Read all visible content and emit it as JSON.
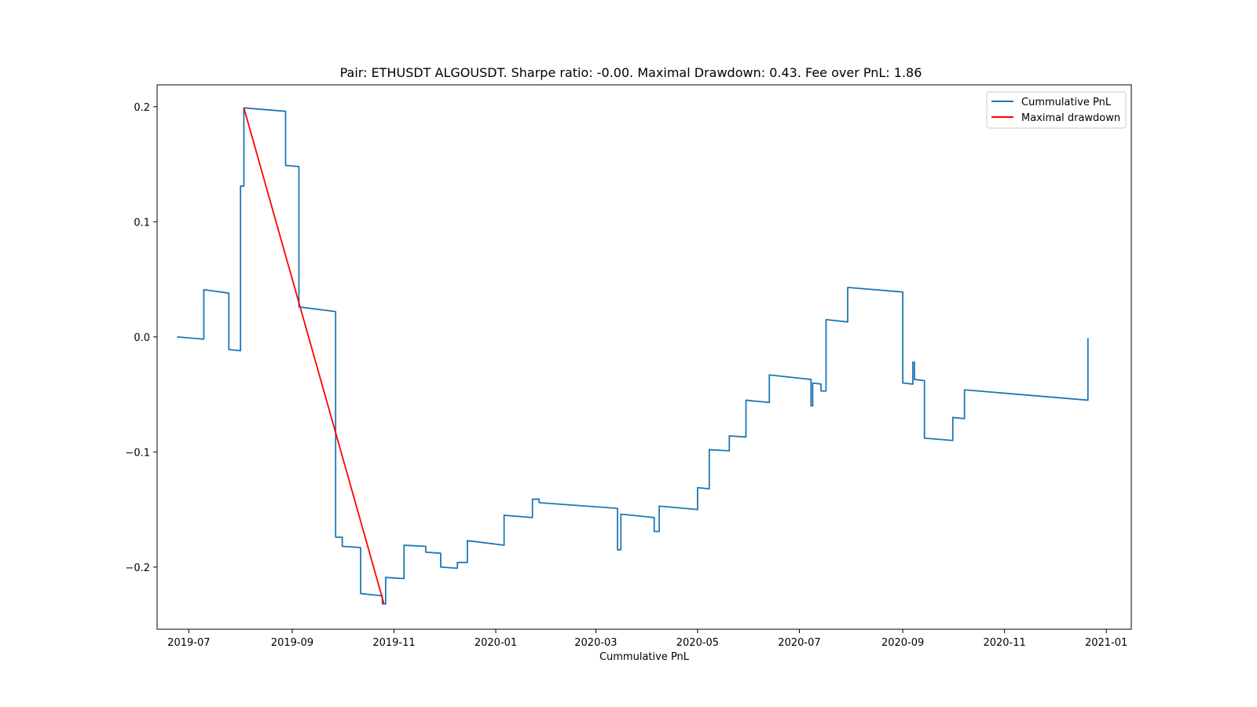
{
  "chart_data": {
    "type": "line",
    "title": "Pair: ETHUSDT ALGOUSDT. Sharpe ratio: -0.00. Maximal Drawdown: 0.43. Fee over PnL: 1.86",
    "xlabel": "Cummulative PnL",
    "ylabel": "",
    "xlim": [
      "2019-06-12",
      "2021-01-16"
    ],
    "ylim": [
      -0.254,
      0.219
    ],
    "x_ticks": [
      "2019-07",
      "2019-09",
      "2019-11",
      "2020-01",
      "2020-03",
      "2020-05",
      "2020-07",
      "2020-09",
      "2020-11",
      "2021-01"
    ],
    "y_ticks": [
      "0.2",
      "0.1",
      "0.0",
      "−0.1",
      "−0.2"
    ],
    "y_tick_values": [
      0.2,
      0.1,
      0.0,
      -0.1,
      -0.2
    ],
    "legend_position": "top-right",
    "grid": false,
    "series": [
      {
        "name": "Cummulative PnL",
        "color": "#1f77b4",
        "points": [
          [
            "2019-06-24",
            0.0
          ],
          [
            "2019-07-10",
            -0.002
          ],
          [
            "2019-07-10",
            0.041
          ],
          [
            "2019-07-25",
            0.038
          ],
          [
            "2019-07-25",
            -0.011
          ],
          [
            "2019-08-01",
            -0.012
          ],
          [
            "2019-08-01",
            0.131
          ],
          [
            "2019-08-03",
            0.131
          ],
          [
            "2019-08-03",
            0.199
          ],
          [
            "2019-08-28",
            0.196
          ],
          [
            "2019-08-28",
            0.149
          ],
          [
            "2019-09-05",
            0.148
          ],
          [
            "2019-09-05",
            0.026
          ],
          [
            "2019-09-27",
            0.022
          ],
          [
            "2019-09-27",
            -0.174
          ],
          [
            "2019-10-01",
            -0.174
          ],
          [
            "2019-10-01",
            -0.182
          ],
          [
            "2019-10-12",
            -0.183
          ],
          [
            "2019-10-12",
            -0.223
          ],
          [
            "2019-10-25",
            -0.225
          ],
          [
            "2019-10-25",
            -0.232
          ],
          [
            "2019-10-27",
            -0.232
          ],
          [
            "2019-10-27",
            -0.209
          ],
          [
            "2019-11-07",
            -0.21
          ],
          [
            "2019-11-07",
            -0.181
          ],
          [
            "2019-11-20",
            -0.182
          ],
          [
            "2019-11-20",
            -0.187
          ],
          [
            "2019-11-29",
            -0.188
          ],
          [
            "2019-11-29",
            -0.2
          ],
          [
            "2019-12-09",
            -0.201
          ],
          [
            "2019-12-09",
            -0.196
          ],
          [
            "2019-12-15",
            -0.196
          ],
          [
            "2019-12-15",
            -0.177
          ],
          [
            "2020-01-06",
            -0.181
          ],
          [
            "2020-01-06",
            -0.155
          ],
          [
            "2020-01-23",
            -0.157
          ],
          [
            "2020-01-23",
            -0.141
          ],
          [
            "2020-01-27",
            -0.141
          ],
          [
            "2020-01-27",
            -0.144
          ],
          [
            "2020-03-14",
            -0.149
          ],
          [
            "2020-03-14",
            -0.185
          ],
          [
            "2020-03-16",
            -0.185
          ],
          [
            "2020-03-16",
            -0.154
          ],
          [
            "2020-04-05",
            -0.157
          ],
          [
            "2020-04-05",
            -0.169
          ],
          [
            "2020-04-08",
            -0.169
          ],
          [
            "2020-04-08",
            -0.147
          ],
          [
            "2020-05-01",
            -0.15
          ],
          [
            "2020-05-01",
            -0.131
          ],
          [
            "2020-05-08",
            -0.132
          ],
          [
            "2020-05-08",
            -0.098
          ],
          [
            "2020-05-20",
            -0.099
          ],
          [
            "2020-05-20",
            -0.086
          ],
          [
            "2020-05-30",
            -0.087
          ],
          [
            "2020-05-30",
            -0.055
          ],
          [
            "2020-06-13",
            -0.057
          ],
          [
            "2020-06-13",
            -0.033
          ],
          [
            "2020-07-08",
            -0.037
          ],
          [
            "2020-07-08",
            -0.06
          ],
          [
            "2020-07-09",
            -0.06
          ],
          [
            "2020-07-09",
            -0.04
          ],
          [
            "2020-07-14",
            -0.041
          ],
          [
            "2020-07-14",
            -0.047
          ],
          [
            "2020-07-17",
            -0.047
          ],
          [
            "2020-07-17",
            0.015
          ],
          [
            "2020-07-30",
            0.013
          ],
          [
            "2020-07-30",
            0.043
          ],
          [
            "2020-09-01",
            0.039
          ],
          [
            "2020-09-01",
            -0.04
          ],
          [
            "2020-09-07",
            -0.041
          ],
          [
            "2020-09-07",
            -0.022
          ],
          [
            "2020-09-08",
            -0.022
          ],
          [
            "2020-09-08",
            -0.037
          ],
          [
            "2020-09-14",
            -0.038
          ],
          [
            "2020-09-14",
            -0.088
          ],
          [
            "2020-10-01",
            -0.09
          ],
          [
            "2020-10-01",
            -0.07
          ],
          [
            "2020-10-08",
            -0.071
          ],
          [
            "2020-10-08",
            -0.046
          ],
          [
            "2020-12-21",
            -0.055
          ],
          [
            "2020-12-21",
            -0.001
          ]
        ]
      },
      {
        "name": "Maximal drawdown",
        "color": "#ff0000",
        "points": [
          [
            "2019-08-03",
            0.199
          ],
          [
            "2019-10-26",
            -0.232
          ]
        ]
      }
    ]
  }
}
